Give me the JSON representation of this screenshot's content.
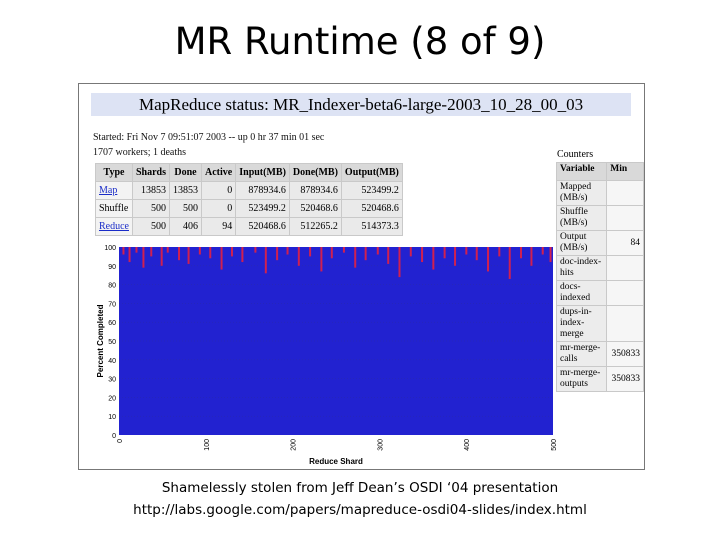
{
  "slide": {
    "title": "MR Runtime (8 of 9)",
    "credit": "Shamelessly stolen from Jeff Dean’s OSDI ‘04 presentation",
    "url": "http://labs.google.com/papers/mapreduce-osdi04-slides/index.html"
  },
  "status": {
    "title": "MapReduce status: MR_Indexer-beta6-large-2003_10_28_00_03",
    "started": "Started: Fri Nov 7 09:51:07 2003 -- up 0 hr 37 min 01 sec",
    "workers": "1707 workers; 1 deaths"
  },
  "mr_table": {
    "headers": [
      "Type",
      "Shards",
      "Done",
      "Active",
      "Input(MB)",
      "Done(MB)",
      "Output(MB)"
    ],
    "rows": [
      {
        "type": "Map",
        "link": true,
        "shards": "13853",
        "done": "13853",
        "active": "0",
        "input": "878934.6",
        "done_mb": "878934.6",
        "output": "523499.2"
      },
      {
        "type": "Shuffle",
        "link": false,
        "shards": "500",
        "done": "500",
        "active": "0",
        "input": "523499.2",
        "done_mb": "520468.6",
        "output": "520468.6"
      },
      {
        "type": "Reduce",
        "link": true,
        "shards": "500",
        "done": "406",
        "active": "94",
        "input": "520468.6",
        "done_mb": "512265.2",
        "output": "514373.3"
      }
    ]
  },
  "counters": {
    "label": "Counters",
    "headers": [
      "Variable",
      "Min"
    ],
    "rows": [
      {
        "variable": "Mapped (MB/s)",
        "value": ""
      },
      {
        "variable": "Shuffle (MB/s)",
        "value": ""
      },
      {
        "variable": "Output (MB/s)",
        "value": "84"
      },
      {
        "variable": "doc-index-hits",
        "value": ""
      },
      {
        "variable": "docs-indexed",
        "value": ""
      },
      {
        "variable": "dups-in-index-merge",
        "value": ""
      },
      {
        "variable": "mr-merge-calls",
        "value": "350833"
      },
      {
        "variable": "mr-merge-outputs",
        "value": "350833"
      }
    ]
  },
  "chart_data": {
    "type": "bar",
    "xlabel": "Reduce Shard",
    "ylabel": "Percent Completed",
    "xlim": [
      0,
      500
    ],
    "ylim": [
      0,
      100
    ],
    "xticks": [
      0,
      100,
      200,
      300,
      400,
      500
    ],
    "yticks": [
      0,
      10,
      20,
      30,
      40,
      50,
      60,
      70,
      80,
      90,
      100
    ],
    "series": [
      {
        "values_summary": "Most shards at 100%; several shards in-progress between about 83% and 99%"
      }
    ],
    "dips": [
      {
        "x": 4,
        "y": 96
      },
      {
        "x": 11,
        "y": 92
      },
      {
        "x": 19,
        "y": 97
      },
      {
        "x": 27,
        "y": 89
      },
      {
        "x": 36,
        "y": 95
      },
      {
        "x": 48,
        "y": 90
      },
      {
        "x": 55,
        "y": 97
      },
      {
        "x": 68,
        "y": 93
      },
      {
        "x": 79,
        "y": 91
      },
      {
        "x": 92,
        "y": 96
      },
      {
        "x": 104,
        "y": 94
      },
      {
        "x": 117,
        "y": 88
      },
      {
        "x": 129,
        "y": 95
      },
      {
        "x": 141,
        "y": 92
      },
      {
        "x": 156,
        "y": 97
      },
      {
        "x": 168,
        "y": 86
      },
      {
        "x": 181,
        "y": 93
      },
      {
        "x": 193,
        "y": 96
      },
      {
        "x": 206,
        "y": 90
      },
      {
        "x": 219,
        "y": 95
      },
      {
        "x": 232,
        "y": 87
      },
      {
        "x": 244,
        "y": 94
      },
      {
        "x": 258,
        "y": 97
      },
      {
        "x": 271,
        "y": 89
      },
      {
        "x": 283,
        "y": 93
      },
      {
        "x": 297,
        "y": 96
      },
      {
        "x": 309,
        "y": 91
      },
      {
        "x": 322,
        "y": 84
      },
      {
        "x": 335,
        "y": 95
      },
      {
        "x": 348,
        "y": 92
      },
      {
        "x": 361,
        "y": 88
      },
      {
        "x": 374,
        "y": 94
      },
      {
        "x": 386,
        "y": 90
      },
      {
        "x": 399,
        "y": 96
      },
      {
        "x": 411,
        "y": 93
      },
      {
        "x": 424,
        "y": 87
      },
      {
        "x": 437,
        "y": 95
      },
      {
        "x": 449,
        "y": 83
      },
      {
        "x": 462,
        "y": 94
      },
      {
        "x": 474,
        "y": 90
      },
      {
        "x": 487,
        "y": 96
      },
      {
        "x": 496,
        "y": 92
      }
    ],
    "colors": {
      "done": "#2222d0",
      "active": "#d02050",
      "background": "#bcbcbc"
    }
  }
}
